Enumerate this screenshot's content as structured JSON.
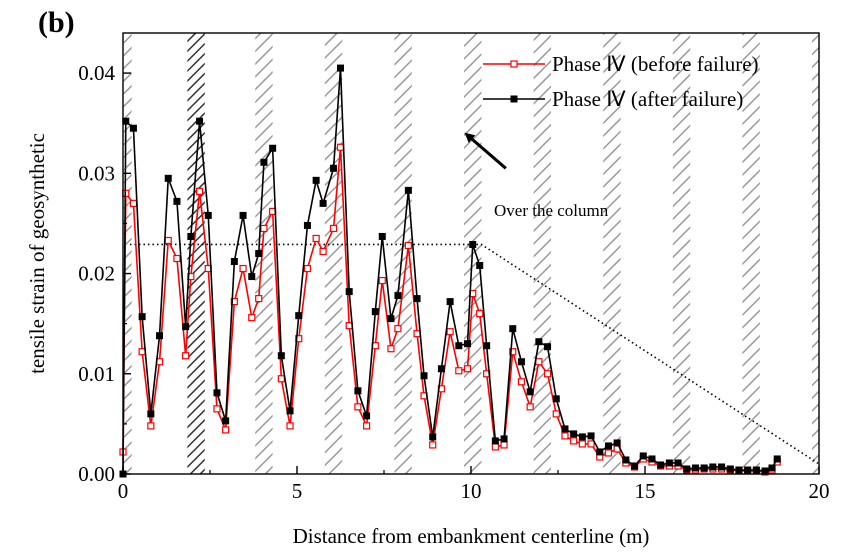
{
  "panel_label": "(b)",
  "chart_data": {
    "type": "line",
    "xlabel": "Distance from embankment centerline (m)",
    "ylabel": "tensile strain of geosynthetic",
    "xlim": [
      0,
      20
    ],
    "ylim": [
      0,
      0.044
    ],
    "xticks": [
      0,
      5,
      10,
      15,
      20
    ],
    "yticks": [
      0.0,
      0.01,
      0.02,
      0.03,
      0.04
    ],
    "ytick_labels": [
      "0.00",
      "0.01",
      "0.02",
      "0.03",
      "0.04"
    ],
    "xtick_labels": [
      "0",
      "5",
      "10",
      "15",
      "20"
    ],
    "legend_position": "top-right",
    "column_bands": [
      [
        0.02,
        0.25
      ],
      [
        1.85,
        2.35
      ],
      [
        3.8,
        4.3
      ],
      [
        5.8,
        6.3
      ],
      [
        7.8,
        8.3
      ],
      [
        9.8,
        10.3
      ],
      [
        11.8,
        12.3
      ],
      [
        13.8,
        14.3
      ],
      [
        15.8,
        16.3
      ],
      [
        17.8,
        18.3
      ],
      [
        19.8,
        20.0
      ]
    ],
    "series": [
      {
        "name": "Phase Ⅳ  (before failure)",
        "color": "#ff0000",
        "marker": "hollow-square",
        "x": [
          0.0,
          0.08,
          0.3,
          0.55,
          0.8,
          1.05,
          1.3,
          1.55,
          1.8,
          1.95,
          2.2,
          2.45,
          2.7,
          2.95,
          3.2,
          3.45,
          3.7,
          3.9,
          4.05,
          4.3,
          4.55,
          4.8,
          5.05,
          5.3,
          5.55,
          5.75,
          6.05,
          6.25,
          6.5,
          6.75,
          7.0,
          7.25,
          7.45,
          7.7,
          7.9,
          8.2,
          8.45,
          8.65,
          8.9,
          9.15,
          9.4,
          9.65,
          9.9,
          10.05,
          10.25,
          10.45,
          10.7,
          10.95,
          11.2,
          11.45,
          11.7,
          11.95,
          12.2,
          12.45,
          12.7,
          12.95,
          13.2,
          13.45,
          13.7,
          13.95,
          14.2,
          14.45,
          14.7,
          14.95,
          15.2,
          15.45,
          15.7,
          15.95,
          16.2,
          16.45,
          16.7,
          16.95,
          17.2,
          17.45,
          17.7,
          17.95,
          18.2,
          18.45,
          18.65,
          18.8
        ],
        "y": [
          0.0022,
          0.028,
          0.027,
          0.0122,
          0.0048,
          0.0112,
          0.0233,
          0.0215,
          0.0118,
          0.0197,
          0.0282,
          0.0205,
          0.0065,
          0.0044,
          0.0172,
          0.0205,
          0.0156,
          0.0175,
          0.0245,
          0.0262,
          0.0095,
          0.0048,
          0.0135,
          0.0205,
          0.0235,
          0.0222,
          0.0245,
          0.0326,
          0.0148,
          0.0067,
          0.0048,
          0.0128,
          0.0193,
          0.0125,
          0.0145,
          0.0228,
          0.014,
          0.0078,
          0.0029,
          0.0085,
          0.0142,
          0.0103,
          0.0105,
          0.018,
          0.016,
          0.01,
          0.0027,
          0.0029,
          0.0122,
          0.0092,
          0.0067,
          0.0112,
          0.01,
          0.006,
          0.0038,
          0.0033,
          0.003,
          0.003,
          0.0017,
          0.0021,
          0.0025,
          0.0011,
          0.0007,
          0.0015,
          0.0012,
          0.0008,
          0.0008,
          0.0008,
          0.0004,
          0.0004,
          0.0005,
          0.0005,
          0.0005,
          0.0004,
          0.0003,
          0.0003,
          0.0003,
          0.0002,
          0.0004,
          0.0012
        ]
      },
      {
        "name": "Phase Ⅳ  (after failure)",
        "color": "#000000",
        "marker": "filled-square",
        "x": [
          0.0,
          0.08,
          0.3,
          0.55,
          0.8,
          1.05,
          1.3,
          1.55,
          1.8,
          1.95,
          2.2,
          2.45,
          2.7,
          2.95,
          3.2,
          3.45,
          3.7,
          3.9,
          4.05,
          4.3,
          4.55,
          4.8,
          5.05,
          5.3,
          5.55,
          5.75,
          6.05,
          6.25,
          6.5,
          6.75,
          7.0,
          7.25,
          7.45,
          7.7,
          7.9,
          8.2,
          8.45,
          8.65,
          8.9,
          9.15,
          9.4,
          9.65,
          9.9,
          10.05,
          10.25,
          10.45,
          10.7,
          10.95,
          11.2,
          11.45,
          11.7,
          11.95,
          12.2,
          12.45,
          12.7,
          12.95,
          13.2,
          13.45,
          13.7,
          13.95,
          14.2,
          14.45,
          14.7,
          14.95,
          15.2,
          15.45,
          15.7,
          15.95,
          16.2,
          16.45,
          16.7,
          16.95,
          17.2,
          17.45,
          17.7,
          17.95,
          18.2,
          18.45,
          18.65,
          18.8
        ],
        "y": [
          0.0,
          0.0352,
          0.0345,
          0.0157,
          0.006,
          0.0138,
          0.0295,
          0.0272,
          0.0147,
          0.0237,
          0.0352,
          0.0258,
          0.0081,
          0.0053,
          0.0212,
          0.0258,
          0.0197,
          0.022,
          0.0311,
          0.0325,
          0.0118,
          0.0063,
          0.0158,
          0.0248,
          0.0293,
          0.027,
          0.0305,
          0.0405,
          0.0182,
          0.0083,
          0.0058,
          0.0162,
          0.0237,
          0.0155,
          0.0178,
          0.0283,
          0.0175,
          0.0098,
          0.0037,
          0.0105,
          0.0172,
          0.0128,
          0.013,
          0.0229,
          0.0208,
          0.0128,
          0.0033,
          0.0035,
          0.0145,
          0.0112,
          0.0082,
          0.0132,
          0.0127,
          0.0075,
          0.0045,
          0.004,
          0.0037,
          0.0038,
          0.0022,
          0.0028,
          0.0031,
          0.0014,
          0.0008,
          0.0018,
          0.0015,
          0.0009,
          0.0011,
          0.0011,
          0.0005,
          0.0006,
          0.0006,
          0.0007,
          0.0007,
          0.0005,
          0.0004,
          0.0004,
          0.0004,
          0.0003,
          0.0006,
          0.0015
        ]
      }
    ],
    "reference_line": {
      "style": "dotted",
      "points": [
        [
          0.2,
          0.0229
        ],
        [
          10.3,
          0.0229
        ],
        [
          20.0,
          0.001
        ]
      ]
    },
    "annotation": {
      "text": "Over the column",
      "arrow_from": [
        11.0,
        0.0305
      ],
      "arrow_to": [
        9.9,
        0.0338
      ]
    }
  }
}
